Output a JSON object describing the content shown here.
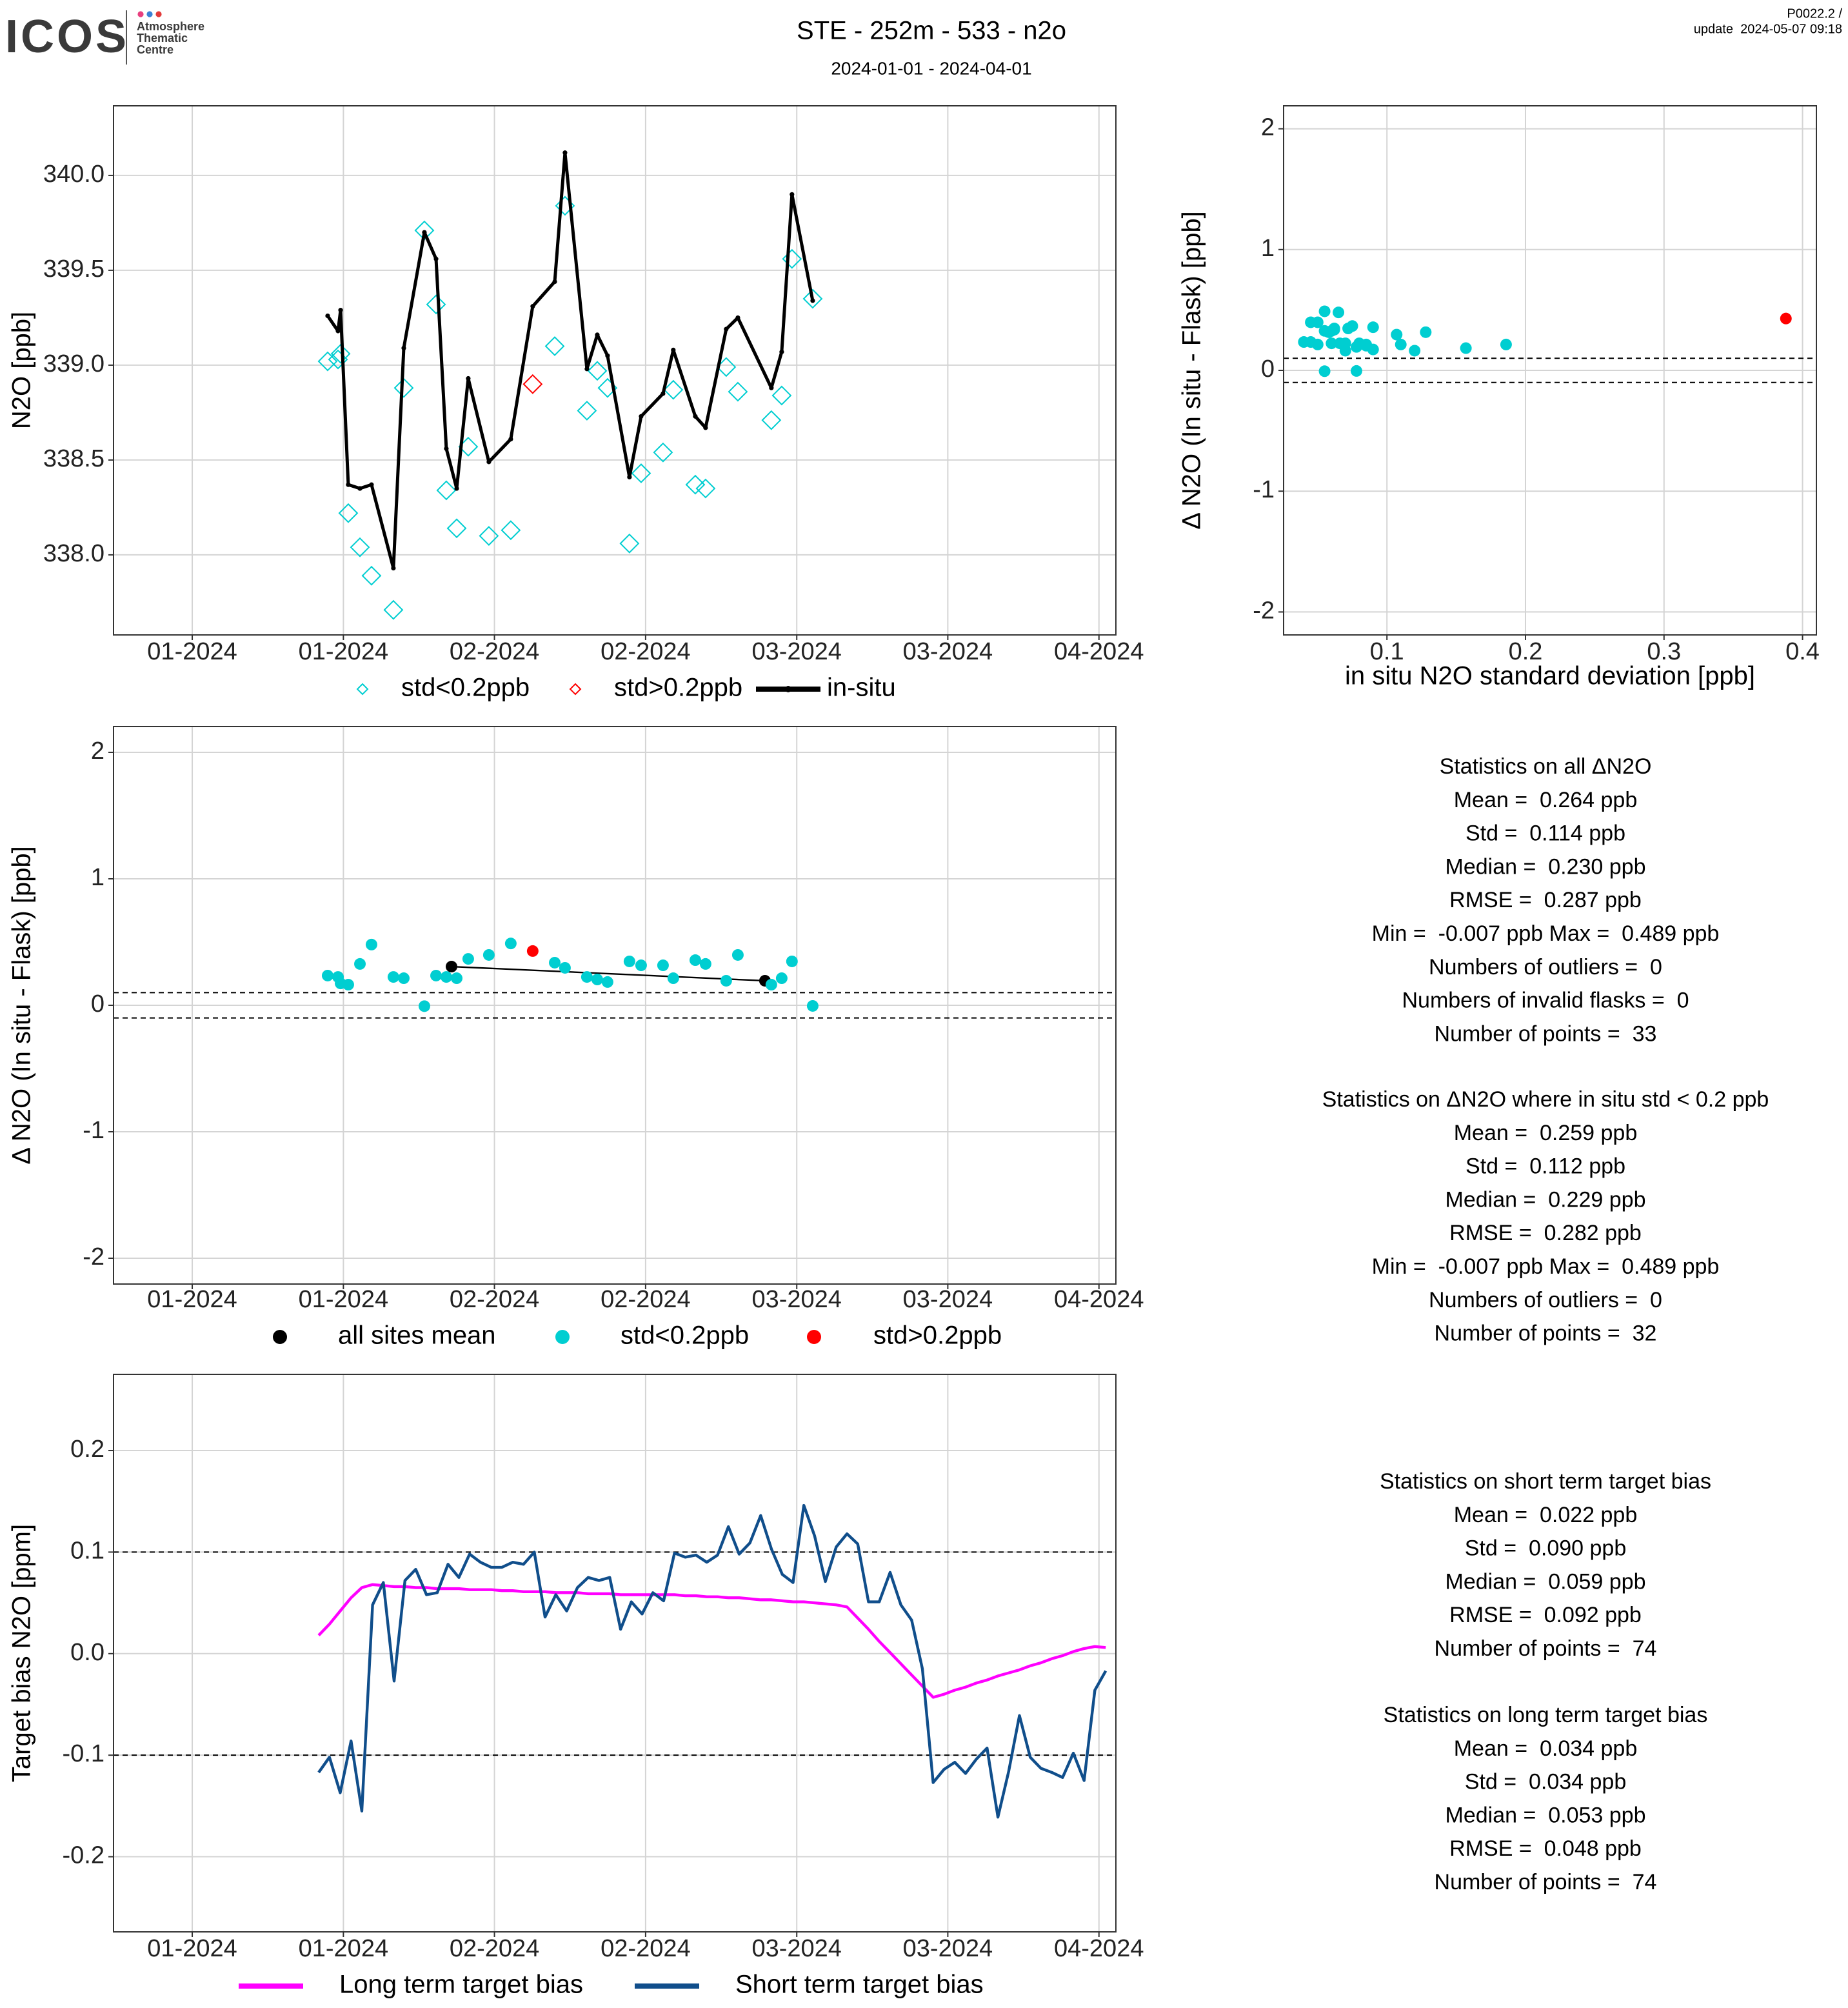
{
  "header": {
    "logo": "ICOS",
    "logo_sub": [
      "Atmosphere",
      "Thematic",
      "Centre"
    ],
    "title": "STE - 252m - 533 - n2o",
    "subtitle": "2024-01-01 - 2024-04-01",
    "version": "P0022.2 /",
    "update": "update  2024-05-07 09:18"
  },
  "chart_data": [
    {
      "type": "line",
      "ylabel": "N2O [ppb]",
      "grid": true,
      "legend": "bottom",
      "xlim": [
        -7.9,
        92.7
      ],
      "xticks": [
        {
          "value": 0,
          "label": "01-2024"
        },
        {
          "value": 15.17,
          "label": "01-2024"
        },
        {
          "value": 30.33,
          "label": "02-2024"
        },
        {
          "value": 45.5,
          "label": "02-2024"
        },
        {
          "value": 60.67,
          "label": "03-2024"
        },
        {
          "value": 75.83,
          "label": "03-2024"
        },
        {
          "value": 91,
          "label": "04-2024"
        }
      ],
      "ylim": [
        337.578,
        340.367
      ],
      "yticks": [
        {
          "value": 338,
          "label": "338.0"
        },
        338.5,
        {
          "value": 339,
          "label": "339.0"
        },
        339.5,
        {
          "value": 340,
          "label": "340.0"
        }
      ],
      "series": [
        {
          "name": "std<0.2ppb",
          "color": "#00CED1",
          "marker": "diamond",
          "x": [
            13.59,
            14.63,
            14.89,
            15.66,
            16.83,
            17.99,
            20.19,
            21.23,
            23.3,
            24.47,
            25.5,
            26.54,
            27.7,
            29.77,
            31.97,
            36.38,
            37.41,
            39.61,
            40.65,
            41.68,
            43.88,
            45.05,
            47.25,
            48.28,
            50.49,
            51.52,
            53.59,
            54.76,
            58.12,
            59.16,
            60.19,
            62.27
          ],
          "values": [
            339.02,
            339.03,
            339.06,
            338.22,
            338.04,
            337.89,
            337.71,
            338.88,
            339.71,
            339.32,
            338.34,
            338.14,
            338.57,
            338.1,
            338.13,
            339.1,
            339.84,
            338.76,
            338.97,
            338.88,
            338.06,
            338.43,
            338.54,
            338.87,
            338.37,
            338.35,
            338.99,
            338.86,
            338.71,
            338.84,
            339.56,
            339.35
          ]
        },
        {
          "name": "std>0.2ppb",
          "color": "#FF0000",
          "marker": "diamond",
          "x": [
            34.17
          ],
          "values": [
            338.9
          ]
        },
        {
          "name": "in-situ",
          "color": "#000000",
          "marker": "line-dot",
          "x": [
            13.59,
            14.63,
            14.89,
            15.66,
            16.83,
            17.99,
            20.19,
            21.23,
            23.3,
            24.47,
            25.5,
            26.54,
            27.7,
            29.77,
            31.97,
            34.17,
            36.38,
            37.41,
            39.61,
            40.65,
            41.68,
            43.88,
            45.05,
            47.25,
            48.28,
            50.49,
            51.52,
            53.59,
            54.76,
            58.12,
            59.16,
            60.19,
            62.27
          ],
          "values": [
            339.26,
            339.18,
            339.29,
            338.37,
            338.35,
            338.37,
            337.93,
            339.09,
            339.7,
            339.56,
            338.56,
            338.35,
            338.93,
            338.49,
            338.61,
            339.31,
            339.44,
            340.12,
            338.98,
            339.16,
            339.05,
            338.41,
            338.73,
            338.85,
            339.08,
            338.73,
            338.67,
            339.19,
            339.25,
            338.88,
            339.07,
            339.9,
            339.34
          ]
        }
      ]
    },
    {
      "type": "scatter",
      "xlabel": "in situ N2O standard deviation [ppb]",
      "ylabel": "Δ N2O (In situ - Flask) [ppb]",
      "grid": true,
      "xlim": [
        0.0254,
        0.41
      ],
      "xticks": [
        0.1,
        0.2,
        0.3,
        0.4
      ],
      "ylim": [
        -2.19,
        2.19
      ],
      "yticks": [
        -2,
        -1,
        0,
        1,
        2
      ],
      "hlines": [
        0.1,
        -0.1
      ],
      "series": [
        {
          "color": "#00CED1",
          "marker": "circle",
          "x": [
            0.045,
            0.06,
            0.09,
            0.12,
            0.055,
            0.065,
            0.07,
            0.05,
            0.055,
            0.04,
            0.08,
            0.11,
            0.075,
            0.045,
            0.055,
            0.062,
            0.107,
            0.066,
            0.085,
            0.157,
            0.072,
            0.128,
            0.058,
            0.186,
            0.09,
            0.06,
            0.078,
            0.05,
            0.07,
            0.085,
            0.062,
            0.078
          ],
          "values": [
            0.235,
            0.224,
            0.173,
            0.163,
            0.327,
            0.48,
            0.224,
            0.214,
            -0.007,
            0.235,
            0.224,
            0.214,
            0.367,
            0.398,
            0.489,
            0.337,
            0.296,
            0.224,
            0.204,
            0.184,
            0.347,
            0.316,
            0.316,
            0.214,
            0.357,
            0.327,
            0.194,
            0.398,
            0.163,
            0.214,
            0.347,
            -0.005
          ]
        },
        {
          "color": "#FF0000",
          "marker": "circle",
          "x": [
            0.388
          ],
          "values": [
            0.429
          ]
        }
      ]
    },
    {
      "type": "line",
      "ylabel": "Δ N2O (In situ - Flask) [ppb]",
      "grid": true,
      "legend": "bottom",
      "xlim": [
        -7.9,
        92.7
      ],
      "xticks": [
        {
          "value": 0,
          "label": "01-2024"
        },
        {
          "value": 15.17,
          "label": "01-2024"
        },
        {
          "value": 30.33,
          "label": "02-2024"
        },
        {
          "value": 45.5,
          "label": "02-2024"
        },
        {
          "value": 60.67,
          "label": "03-2024"
        },
        {
          "value": 75.83,
          "label": "03-2024"
        },
        {
          "value": 91,
          "label": "04-2024"
        }
      ],
      "ylim": [
        -2.204,
        2.204
      ],
      "yticks": [
        -2,
        -1,
        0,
        1,
        2
      ],
      "hlines": [
        0.1,
        -0.1
      ],
      "series": [
        {
          "name": "all sites mean",
          "color": "#000000",
          "marker": "line-circle",
          "x": [
            26.02,
            57.48
          ],
          "values": [
            0.306,
            0.194
          ]
        },
        {
          "name": "std<0.2ppb",
          "color": "#00CED1",
          "marker": "circle",
          "x": [
            13.59,
            14.63,
            14.89,
            15.66,
            16.83,
            17.99,
            20.19,
            21.23,
            23.3,
            24.47,
            25.5,
            26.54,
            27.7,
            29.77,
            31.97,
            36.38,
            37.41,
            39.61,
            40.65,
            41.68,
            43.88,
            45.05,
            47.25,
            48.28,
            50.49,
            51.52,
            53.59,
            54.76,
            58.12,
            59.16,
            60.19,
            62.27
          ],
          "values": [
            0.235,
            0.224,
            0.173,
            0.163,
            0.327,
            0.48,
            0.224,
            0.214,
            -0.007,
            0.235,
            0.224,
            0.214,
            0.367,
            0.398,
            0.489,
            0.337,
            0.296,
            0.224,
            0.204,
            0.184,
            0.347,
            0.316,
            0.316,
            0.214,
            0.357,
            0.327,
            0.194,
            0.398,
            0.163,
            0.214,
            0.347,
            -0.005
          ]
        },
        {
          "name": "std>0.2ppb",
          "color": "#FF0000",
          "marker": "circle",
          "x": [
            34.17
          ],
          "values": [
            0.429
          ]
        }
      ]
    },
    {
      "type": "line",
      "ylabel": "Target bias N2O [ppm]",
      "grid": true,
      "legend": "bottom",
      "xlim": [
        -7.9,
        92.7
      ],
      "xticks": [
        {
          "value": 0,
          "label": "01-2024"
        },
        {
          "value": 15.17,
          "label": "01-2024"
        },
        {
          "value": 30.33,
          "label": "02-2024"
        },
        {
          "value": 45.5,
          "label": "02-2024"
        },
        {
          "value": 60.67,
          "label": "03-2024"
        },
        {
          "value": 75.83,
          "label": "03-2024"
        },
        {
          "value": 91,
          "label": "04-2024"
        }
      ],
      "ylim": [
        -0.274,
        0.275
      ],
      "yticks": [
        -0.2,
        -0.1,
        {
          "value": 0,
          "label": "0.0"
        },
        0.1,
        0.2
      ],
      "hlines": [
        0.1,
        -0.1
      ],
      "x": [
        12.69,
        13.77,
        14.85,
        15.94,
        17.02,
        18.1,
        19.18,
        20.26,
        21.35,
        22.43,
        23.51,
        24.59,
        25.67,
        26.76,
        27.84,
        28.92,
        30.0,
        31.08,
        32.17,
        33.25,
        34.33,
        35.41,
        36.49,
        37.58,
        38.66,
        39.74,
        40.82,
        41.9,
        42.99,
        44.07,
        45.15,
        46.23,
        47.31,
        48.4,
        49.48,
        50.56,
        51.64,
        52.72,
        53.81,
        54.89,
        55.97,
        57.05,
        58.13,
        59.22,
        60.3,
        61.38,
        62.46,
        63.54,
        64.63,
        65.71,
        66.79,
        67.87,
        68.95,
        70.04,
        71.12,
        72.2,
        73.28,
        74.36,
        75.45,
        76.53,
        77.61,
        78.69,
        79.77,
        80.86,
        81.94,
        83.02,
        84.1,
        85.18,
        86.27,
        87.35,
        88.43,
        89.51,
        90.59,
        91.68
      ],
      "series": [
        {
          "name": "Long term target bias",
          "color": "#FF00FF",
          "marker": "line",
          "values": [
            0.018,
            0.029,
            0.042,
            0.055,
            0.065,
            0.068,
            0.067,
            0.066,
            0.066,
            0.065,
            0.065,
            0.064,
            0.064,
            0.064,
            0.063,
            0.063,
            0.063,
            0.062,
            0.062,
            0.061,
            0.061,
            0.061,
            0.06,
            0.06,
            0.06,
            0.059,
            0.059,
            0.059,
            0.058,
            0.058,
            0.058,
            0.058,
            0.058,
            0.058,
            0.057,
            0.057,
            0.056,
            0.056,
            0.055,
            0.055,
            0.054,
            0.053,
            0.053,
            0.052,
            0.051,
            0.051,
            0.05,
            0.049,
            0.048,
            0.046,
            0.035,
            0.024,
            0.012,
            0.001,
            -0.01,
            -0.021,
            -0.032,
            -0.043,
            -0.04,
            -0.036,
            -0.033,
            -0.029,
            -0.026,
            -0.022,
            -0.019,
            -0.016,
            -0.012,
            -0.009,
            -0.005,
            -0.002,
            0.002,
            0.005,
            0.007,
            0.006
          ]
        },
        {
          "name": "Short term target bias",
          "color": "#104E8B",
          "marker": "line",
          "values": [
            -0.117,
            -0.102,
            -0.137,
            -0.086,
            -0.155,
            0.048,
            0.07,
            -0.027,
            0.072,
            0.083,
            0.058,
            0.06,
            0.088,
            0.075,
            0.098,
            0.09,
            0.085,
            0.085,
            0.09,
            0.088,
            0.1,
            0.036,
            0.058,
            0.042,
            0.065,
            0.075,
            0.072,
            0.075,
            0.024,
            0.051,
            0.039,
            0.06,
            0.052,
            0.099,
            0.095,
            0.097,
            0.09,
            0.097,
            0.125,
            0.098,
            0.109,
            0.136,
            0.103,
            0.078,
            0.07,
            0.146,
            0.116,
            0.071,
            0.105,
            0.118,
            0.108,
            0.051,
            0.051,
            0.08,
            0.048,
            0.033,
            -0.015,
            -0.127,
            -0.114,
            -0.107,
            -0.118,
            -0.104,
            -0.093,
            -0.161,
            -0.116,
            -0.061,
            -0.102,
            -0.113,
            -0.117,
            -0.122,
            -0.098,
            -0.125,
            -0.036,
            -0.017
          ]
        }
      ]
    }
  ],
  "statistics": [
    {
      "lines": [
        "Statistics on all ΔN2O",
        "Mean =  0.264 ppb",
        "Std =  0.114 ppb",
        "Median =  0.230 ppb",
        "RMSE =  0.287 ppb",
        "Min =  -0.007 ppb Max =  0.489 ppb",
        "Numbers of outliers =  0",
        "Numbers of invalid flasks =  0",
        "Number of points =  33"
      ]
    },
    {
      "lines": [
        "Statistics on ΔN2O where in situ std < 0.2 ppb",
        "Mean =  0.259 ppb",
        "Std =  0.112 ppb",
        "Median =  0.229 ppb",
        "RMSE =  0.282 ppb",
        "Min =  -0.007 ppb Max =  0.489 ppb",
        "Numbers of outliers =  0",
        "Number of points =  32"
      ]
    },
    {
      "lines": [
        "Statistics on short term target bias",
        "Mean =  0.022 ppb",
        "Std =  0.090 ppb",
        "Median =  0.059 ppb",
        "RMSE =  0.092 ppb",
        "Number of points =  74"
      ]
    },
    {
      "lines": [
        "Statistics on long term target bias",
        "Mean =  0.034 ppb",
        "Std =  0.034 ppb",
        "Median =  0.053 ppb",
        "RMSE =  0.048 ppb",
        "Number of points =  74"
      ]
    }
  ]
}
